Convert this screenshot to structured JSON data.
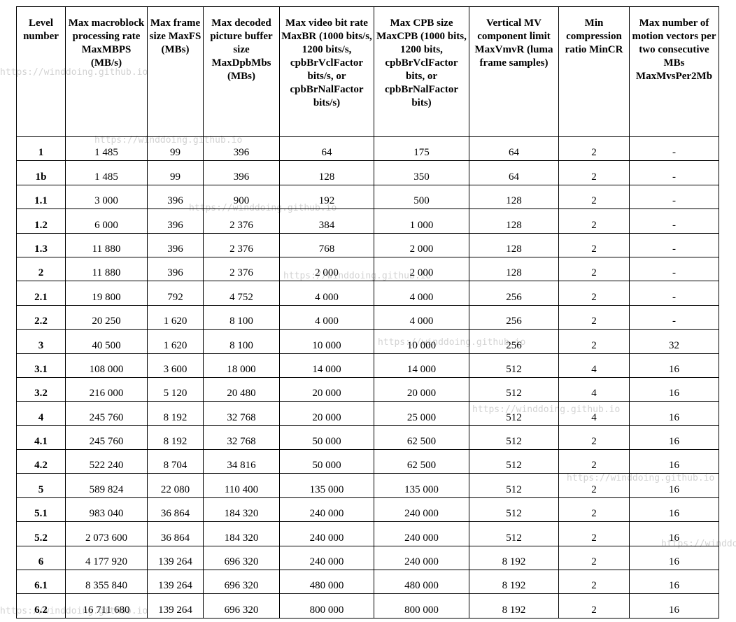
{
  "headers": [
    "Level number",
    "Max macroblock processing rate MaxMBPS (MB/s)",
    "Max frame size MaxFS (MBs)",
    "Max decoded picture buffer size MaxDpbMbs (MBs)",
    "Max video bit rate MaxBR (1000 bits/s, 1200 bits/s, cpbBrVclFactor bits/s, or cpbBrNalFactor bits/s)",
    "Max CPB size MaxCPB (1000 bits, 1200 bits, cpbBrVclFactor bits, or cpbBrNalFactor bits)",
    "Vertical MV component limit MaxVmvR (luma frame samples)",
    "Min compression ratio MinCR",
    "Max number of motion vectors per two consecutive MBs MaxMvsPer2Mb"
  ],
  "rows": [
    [
      "1",
      "1 485",
      "99",
      "396",
      "64",
      "175",
      "64",
      "2",
      "-"
    ],
    [
      "1b",
      "1 485",
      "99",
      "396",
      "128",
      "350",
      "64",
      "2",
      "-"
    ],
    [
      "1.1",
      "3 000",
      "396",
      "900",
      "192",
      "500",
      "128",
      "2",
      "-"
    ],
    [
      "1.2",
      "6 000",
      "396",
      "2 376",
      "384",
      "1 000",
      "128",
      "2",
      "-"
    ],
    [
      "1.3",
      "11 880",
      "396",
      "2 376",
      "768",
      "2 000",
      "128",
      "2",
      "-"
    ],
    [
      "2",
      "11 880",
      "396",
      "2 376",
      "2 000",
      "2 000",
      "128",
      "2",
      "-"
    ],
    [
      "2.1",
      "19 800",
      "792",
      "4 752",
      "4 000",
      "4 000",
      "256",
      "2",
      "-"
    ],
    [
      "2.2",
      "20 250",
      "1 620",
      "8 100",
      "4 000",
      "4 000",
      "256",
      "2",
      "-"
    ],
    [
      "3",
      "40 500",
      "1 620",
      "8 100",
      "10 000",
      "10 000",
      "256",
      "2",
      "32"
    ],
    [
      "3.1",
      "108 000",
      "3 600",
      "18 000",
      "14 000",
      "14 000",
      "512",
      "4",
      "16"
    ],
    [
      "3.2",
      "216 000",
      "5 120",
      "20 480",
      "20 000",
      "20 000",
      "512",
      "4",
      "16"
    ],
    [
      "4",
      "245 760",
      "8 192",
      "32 768",
      "20 000",
      "25 000",
      "512",
      "4",
      "16"
    ],
    [
      "4.1",
      "245 760",
      "8 192",
      "32 768",
      "50 000",
      "62 500",
      "512",
      "2",
      "16"
    ],
    [
      "4.2",
      "522 240",
      "8 704",
      "34 816",
      "50 000",
      "62 500",
      "512",
      "2",
      "16"
    ],
    [
      "5",
      "589 824",
      "22 080",
      "110 400",
      "135 000",
      "135 000",
      "512",
      "2",
      "16"
    ],
    [
      "5.1",
      "983 040",
      "36 864",
      "184 320",
      "240 000",
      "240 000",
      "512",
      "2",
      "16"
    ],
    [
      "5.2",
      "2 073 600",
      "36 864",
      "184 320",
      "240 000",
      "240 000",
      "512",
      "2",
      "16"
    ],
    [
      "6",
      "4 177 920",
      "139 264",
      "696 320",
      "240 000",
      "240 000",
      "8 192",
      "2",
      "16"
    ],
    [
      "6.1",
      "8 355 840",
      "139 264",
      "696 320",
      "480 000",
      "480 000",
      "8 192",
      "2",
      "16"
    ],
    [
      "6.2",
      "16 711 680",
      "139 264",
      "696 320",
      "800 000",
      "800 000",
      "8 192",
      "2",
      "16"
    ]
  ],
  "watermark": "https://winddoing.github.io"
}
